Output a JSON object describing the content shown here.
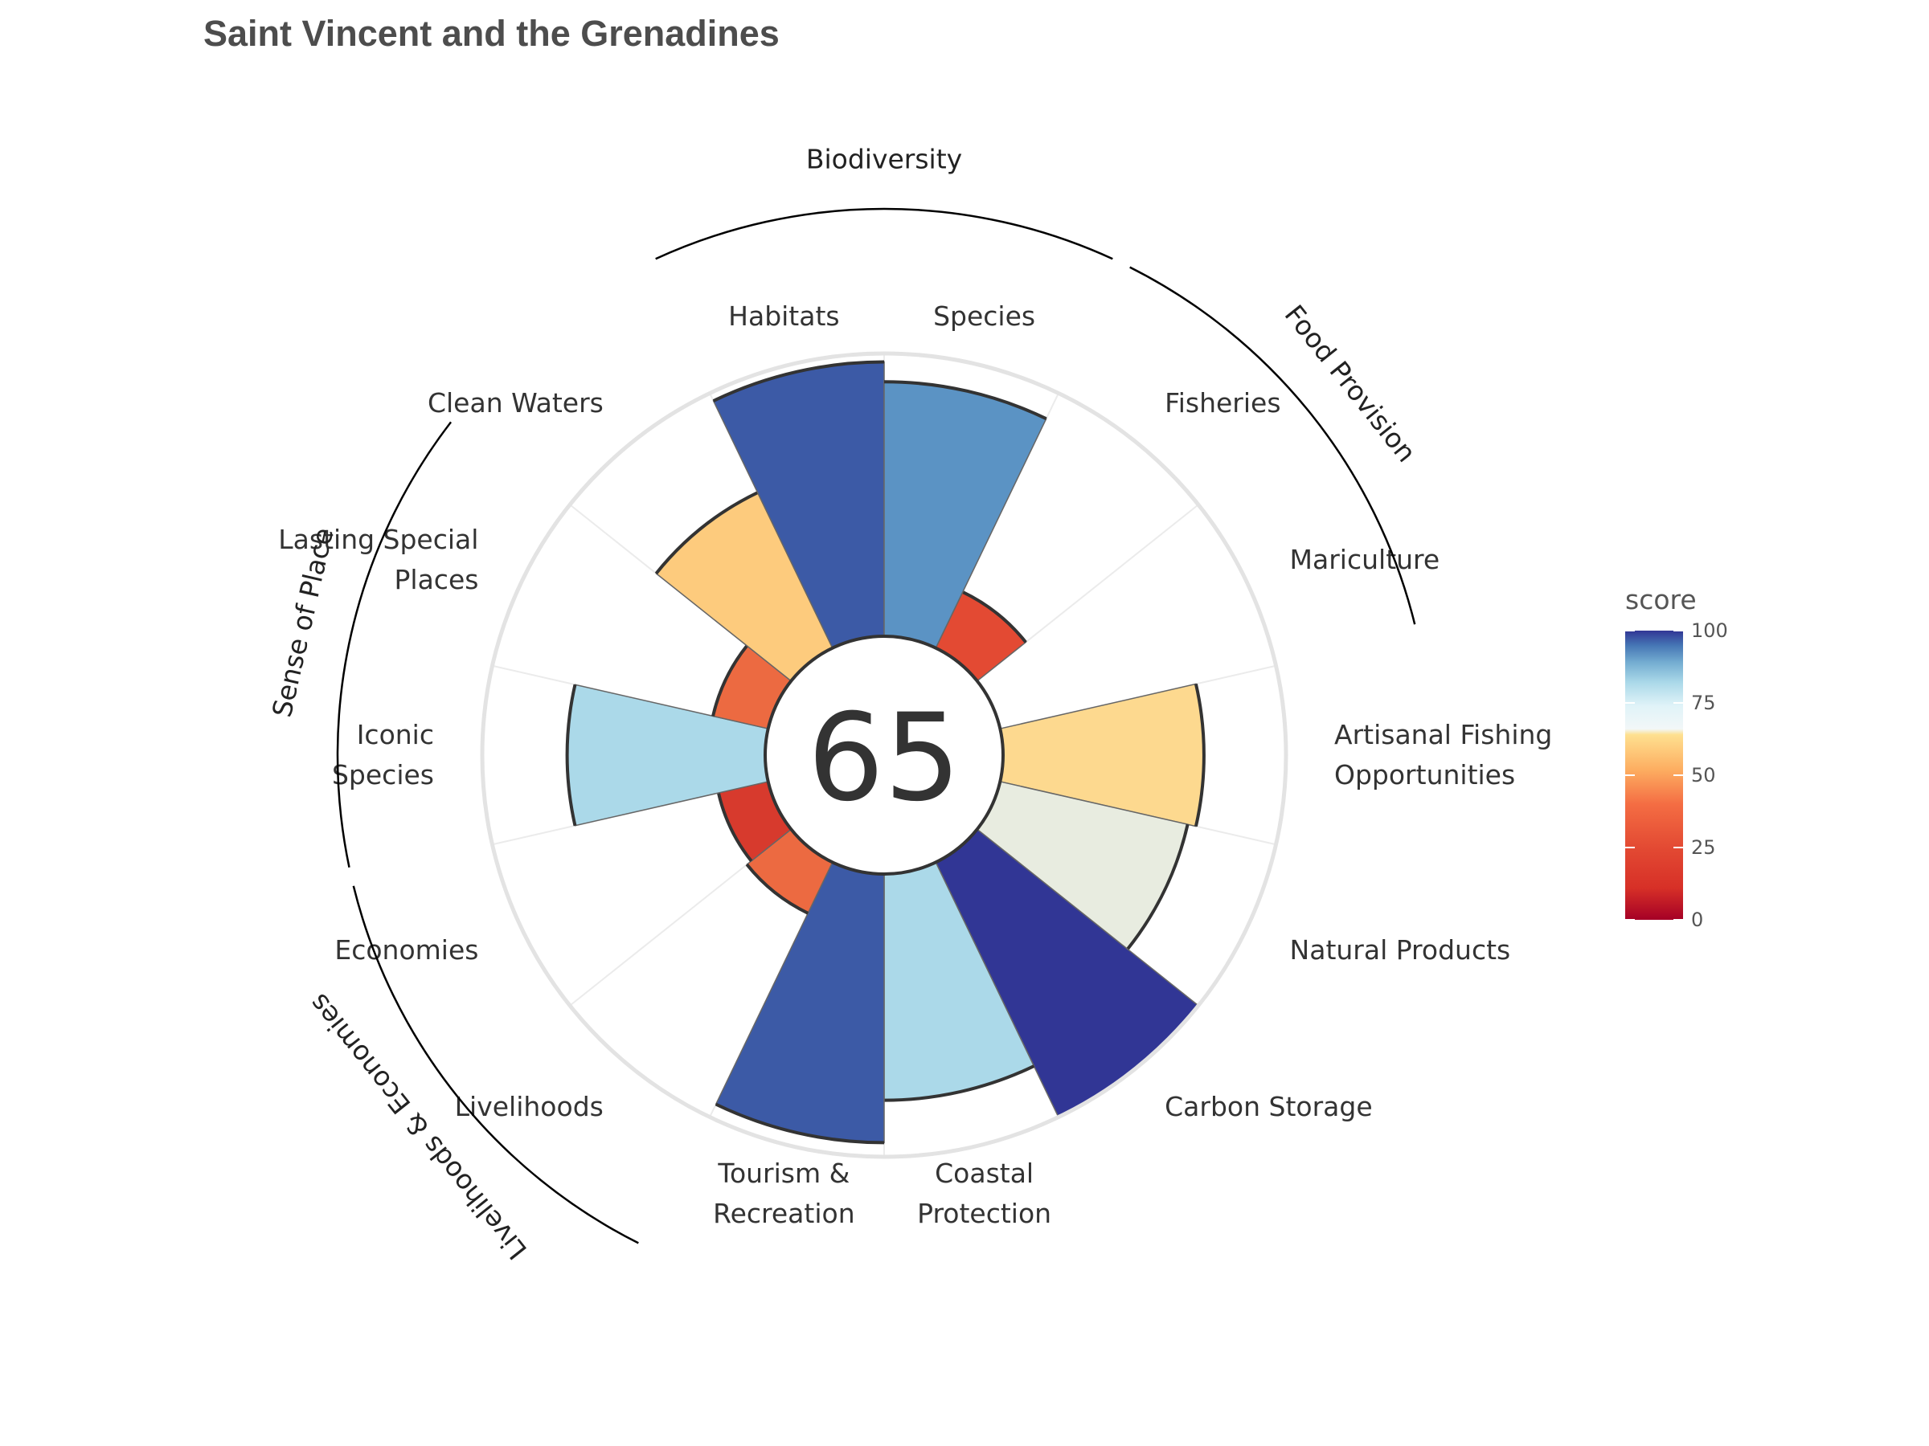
{
  "title": "Saint Vincent and the Grenadines",
  "center_score": "65",
  "legend": {
    "title": "score",
    "ticks": [
      "100",
      "75",
      "50",
      "25",
      "0"
    ],
    "tick_values": [
      100,
      75,
      50,
      25,
      0
    ],
    "colors": [
      "#a50026",
      "#d73027",
      "#f46d43",
      "#fdae61",
      "#fee090",
      "#e0f3f8",
      "#abd9e9",
      "#74add1",
      "#4575b4",
      "#313695"
    ]
  },
  "chart_data": {
    "type": "polar-bar",
    "title": "Saint Vincent and the Grenadines",
    "center_value": 65,
    "ylim": [
      0,
      100
    ],
    "series": [
      {
        "name": "score",
        "values": [
          {
            "label": "Fisheries",
            "value": 22,
            "color": "#e34a33"
          },
          {
            "label": "Mariculture",
            "value": 0,
            "color": "#ffffff"
          },
          {
            "label": "Artisanal Fishing\nOpportunities",
            "value": 71,
            "color": "#fdd98f"
          },
          {
            "label": "Natural Products",
            "value": 68,
            "color": "#e8ece0"
          },
          {
            "label": "Carbon Storage",
            "value": 100,
            "color": "#313695"
          },
          {
            "label": "Coastal\nProtection",
            "value": 80,
            "color": "#abd9e9"
          },
          {
            "label": "Tourism &\nRecreation",
            "value": 95,
            "color": "#3c5aa6"
          },
          {
            "label": "Livelihoods",
            "value": 20,
            "color": "#ec6a41"
          },
          {
            "label": "Economies",
            "value": 18,
            "color": "#d73a2d"
          },
          {
            "label": "Iconic\nSpecies",
            "value": 70,
            "color": "#abd9e9"
          },
          {
            "label": "Lasting Special\nPlaces",
            "value": 20,
            "color": "#ec6a41"
          },
          {
            "label": "Clean Waters",
            "value": 61,
            "color": "#fdcb7d"
          },
          {
            "label": "Habitats",
            "value": 97,
            "color": "#3c5aa6"
          },
          {
            "label": "Species",
            "value": 90,
            "color": "#5b93c4"
          }
        ]
      }
    ],
    "groups": [
      {
        "name": "Food Provision",
        "members": [
          "Fisheries",
          "Mariculture"
        ]
      },
      {
        "name": "Biodiversity",
        "members": [
          "Habitats",
          "Species"
        ]
      },
      {
        "name": "Sense of Place",
        "members": [
          "Iconic\nSpecies",
          "Lasting Special\nPlaces"
        ]
      },
      {
        "name": "Livelihoods & Economies",
        "members": [
          "Livelihoods",
          "Economies"
        ]
      }
    ]
  }
}
